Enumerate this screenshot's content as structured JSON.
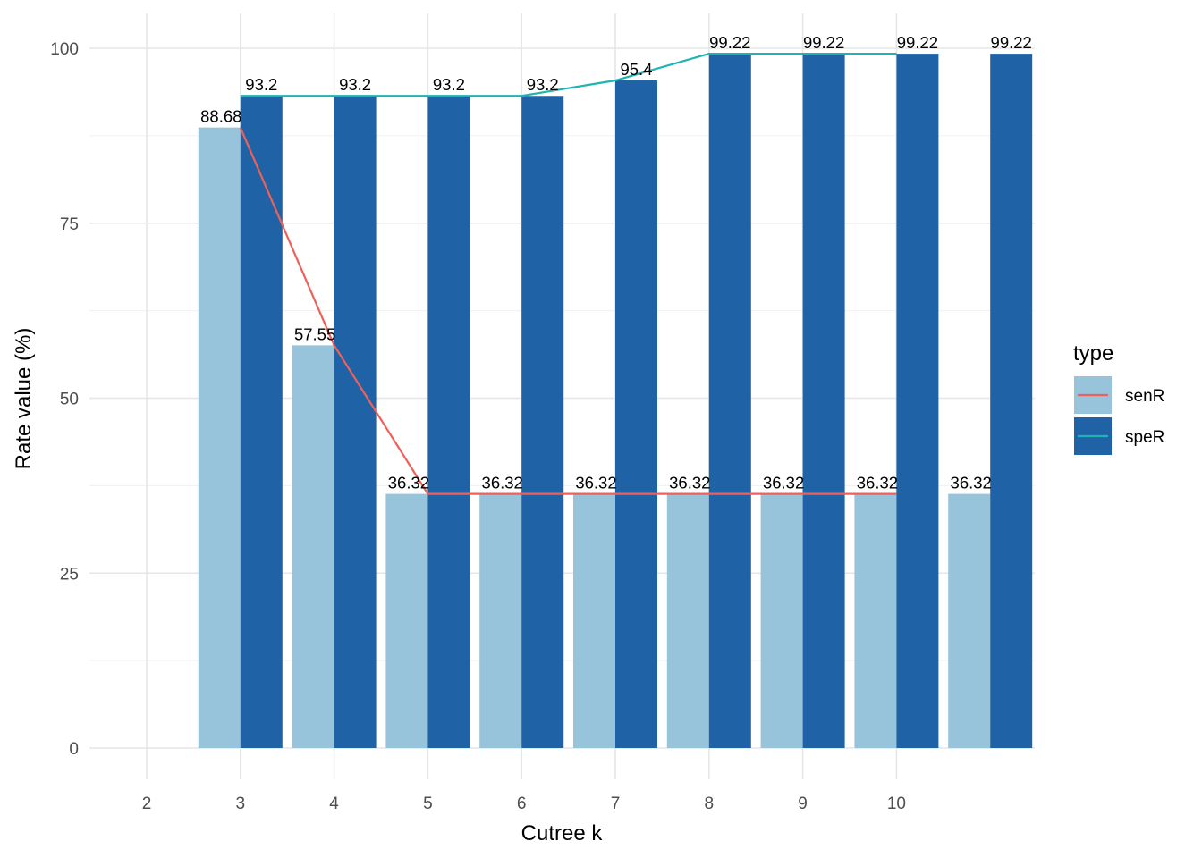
{
  "chart_data": {
    "type": "bar",
    "xlabel": "Cutree k",
    "ylabel": "Rate value (%)",
    "x_ticks": [
      "2",
      "3",
      "4",
      "5",
      "6",
      "7",
      "8",
      "9",
      "10"
    ],
    "y_ticks": [
      "0",
      "25",
      "50",
      "75",
      "100"
    ],
    "ylim": [
      -3.5,
      105
    ],
    "grid": true,
    "legend": {
      "title": "type",
      "position": "right",
      "items": [
        {
          "label": "senR",
          "fill": "#97C3DB",
          "line": "#F0605A"
        },
        {
          "label": "speR",
          "fill": "#1F63A6",
          "line": "#1EB4B4"
        }
      ]
    },
    "series": [
      {
        "name": "senR",
        "x": [
          3,
          4,
          5,
          6,
          7,
          8,
          9,
          10,
          11
        ],
        "values": [
          88.68,
          57.55,
          36.32,
          36.32,
          36.32,
          36.32,
          36.32,
          36.32,
          36.32
        ],
        "labels": [
          "88.68",
          "57.55",
          "36.32",
          "36.32",
          "36.32",
          "36.32",
          "36.32",
          "36.32",
          "36.32"
        ],
        "bar_color": "#97C3DB",
        "line_color": "#F0605A"
      },
      {
        "name": "speR",
        "x": [
          3,
          4,
          5,
          6,
          7,
          8,
          9,
          10,
          11
        ],
        "values": [
          93.2,
          93.2,
          93.2,
          93.2,
          95.4,
          99.22,
          99.22,
          99.22,
          99.22
        ],
        "labels": [
          "93.2",
          "93.2",
          "93.2",
          "93.2",
          "95.4",
          "99.22",
          "99.22",
          "99.22",
          "99.22"
        ],
        "bar_color": "#1F63A6",
        "line_color": "#1EB4B4"
      }
    ]
  }
}
